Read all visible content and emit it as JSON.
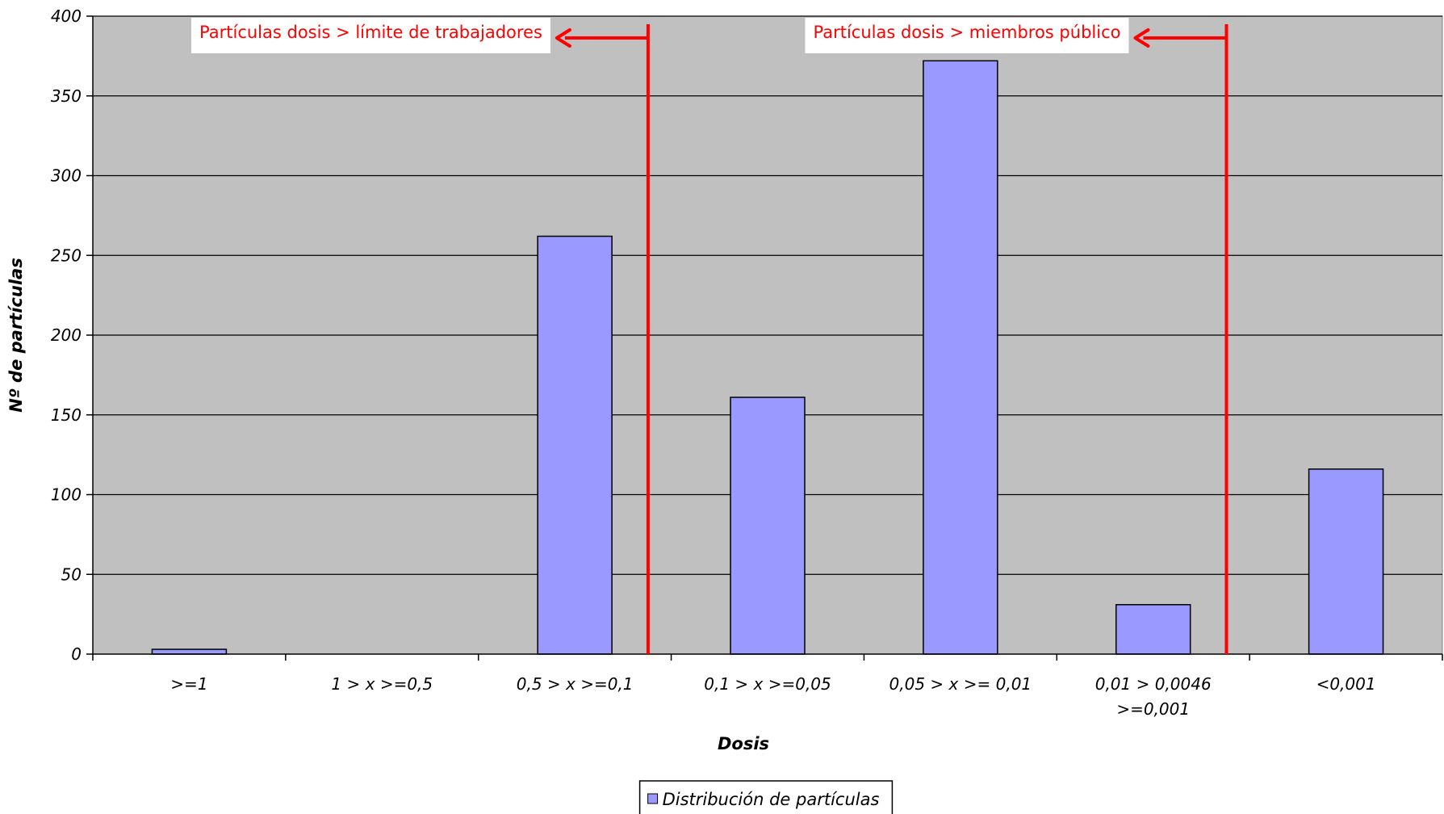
{
  "chart_data": {
    "type": "bar",
    "categories": [
      ">=1",
      "1 > x >=0,5",
      "0,5 > x >=0,1",
      "0,1 > x >=0,05",
      "0,05 > x >= 0,01",
      "0,01 > 0,0046 >=0,001",
      "<0,001"
    ],
    "category_lines": [
      [
        ">=1"
      ],
      [
        "1 > x >=0,5"
      ],
      [
        "0,5 > x >=0,1"
      ],
      [
        "0,1 > x >=0,05"
      ],
      [
        "0,05 > x >= 0,01"
      ],
      [
        "0,01 > 0,0046",
        ">=0,001"
      ],
      [
        "<0,001"
      ]
    ],
    "series": [
      {
        "name": "Distribución de partículas",
        "values": [
          3,
          0,
          262,
          161,
          372,
          31,
          116
        ],
        "color": "#9999ff"
      }
    ],
    "title": "",
    "xlabel": "Dosis",
    "ylabel": "Nº de partículas",
    "ylim": [
      0,
      400
    ],
    "yticks": [
      0,
      50,
      100,
      150,
      200,
      250,
      300,
      350,
      400
    ],
    "ytick_labels": [
      "0",
      "50",
      "100",
      "150",
      "200",
      "250",
      "300",
      "350",
      "400"
    ],
    "grid": true,
    "plot_background": "#c0c0c0",
    "legend_position": "bottom-center",
    "annotations": [
      {
        "text": "Partículas dosis > límite de trabajadores",
        "category_index": 2,
        "category_offset": 0.38,
        "color": "#ff0000"
      },
      {
        "text": "Partículas dosis > miembros público",
        "category_index": 5,
        "category_offset": 0.38,
        "color": "#ff0000"
      }
    ]
  }
}
